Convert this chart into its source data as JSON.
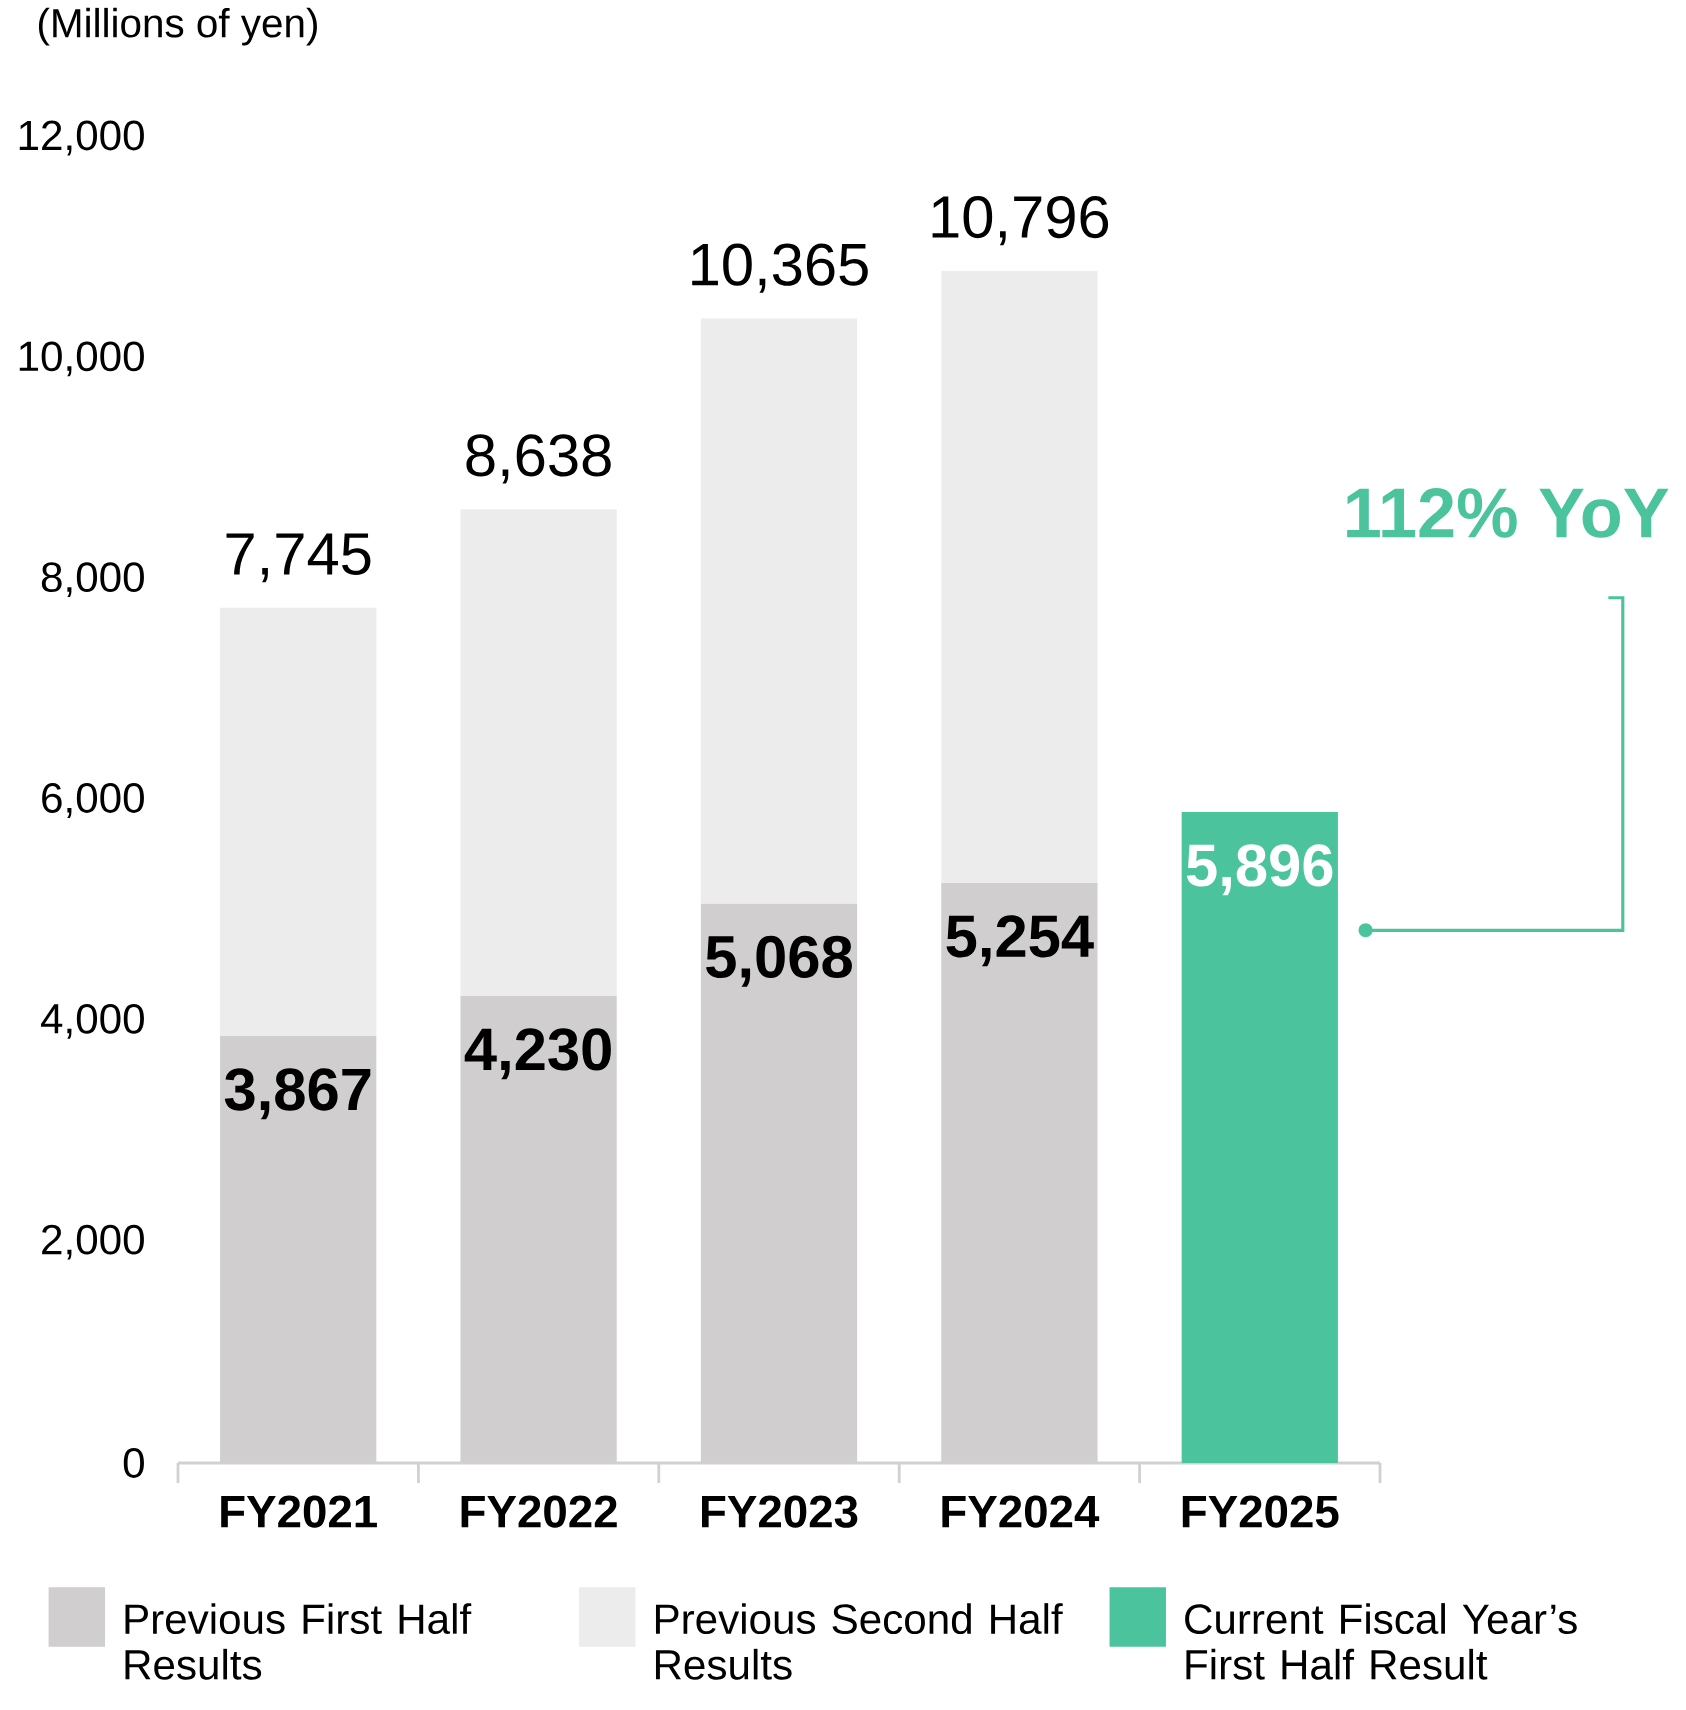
{
  "chart_data": {
    "type": "bar",
    "stacked": true,
    "ylabel": "(Millions of yen)",
    "categories": [
      "FY2021",
      "FY2022",
      "FY2023",
      "FY2024",
      "FY2025"
    ],
    "series": [
      {
        "name": "Previous First Half Results",
        "color": "#d0cecf",
        "values": [
          3867,
          4230,
          5068,
          5254,
          null
        ],
        "value_labels": [
          "3,867",
          "4,230",
          "5,068",
          "5,254",
          null
        ]
      },
      {
        "name": "Previous Second Half Results",
        "color": "#ececec",
        "values": [
          3878,
          4408,
          5297,
          5542,
          null
        ]
      },
      {
        "name": "Current Fiscal Year’s First Half Result",
        "color": "#4bc49e",
        "values": [
          null,
          null,
          null,
          null,
          5896
        ],
        "value_labels": [
          null,
          null,
          null,
          null,
          "5,896"
        ]
      }
    ],
    "totals": [
      "7,745",
      "8,638",
      "10,365",
      "10,796",
      null
    ],
    "ylim": [
      0,
      12000
    ],
    "yticks": [
      0,
      {
        "value": 2000,
        "label": "2,000"
      },
      {
        "value": 4000,
        "label": "4,000"
      },
      {
        "value": 6000,
        "label": "6,000"
      },
      {
        "value": 8000,
        "label": "8,000"
      },
      {
        "value": 10000,
        "label": "10,000"
      },
      {
        "value": 12000,
        "label": "12,000"
      }
    ],
    "annotations": [
      "112% YoY"
    ],
    "legend": "bottom",
    "grid": false
  }
}
